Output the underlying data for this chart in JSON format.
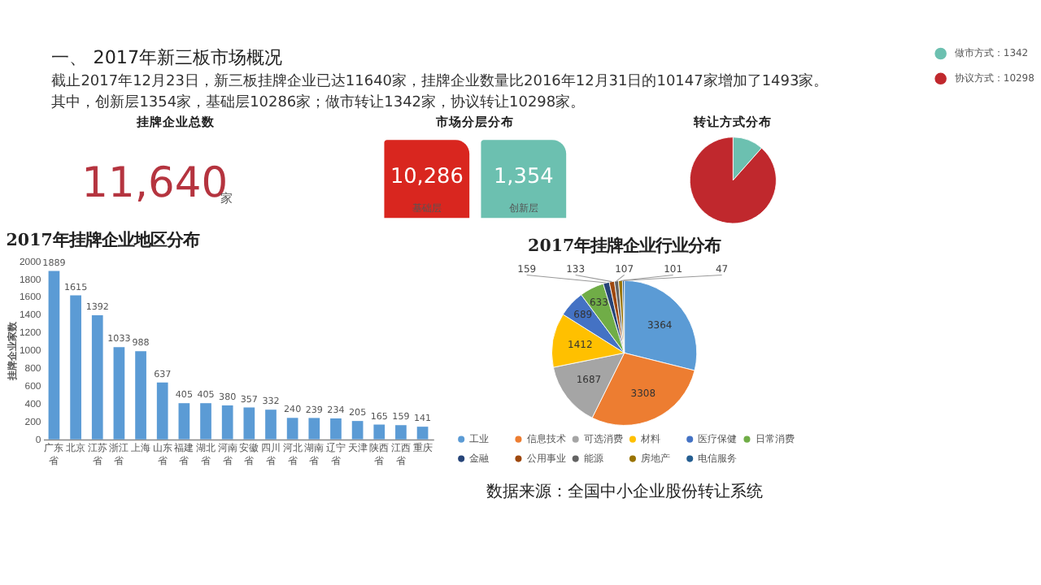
{
  "chart_data": [
    {
      "type": "other",
      "title": "一、 2017年新三板市场概况",
      "annotations": [
        "截止2017年12月23日，新三板挂牌企业已达11640家，挂牌企业数量比2016年12月31日的10147家增加了1493家。",
        "其中，创新层1354家，基础层10286家；做市转让1342家，协议转让10298家。"
      ]
    },
    {
      "type": "other",
      "title": "挂牌企业总数",
      "annotations": [
        "11,640",
        "家"
      ],
      "color": "#b5343f"
    },
    {
      "type": "other",
      "title": "市场分层分布",
      "categories": [
        "基础层",
        "创新层"
      ],
      "values": [
        10286,
        1354
      ],
      "value_labels": [
        "10,286",
        "1,354"
      ],
      "colors": [
        "#d9261f",
        "#6cc0b0"
      ]
    },
    {
      "type": "pie",
      "title": "转让方式分布",
      "categories": [
        "做市方式：1342",
        "协议方式：10298"
      ],
      "values": [
        1342,
        10298
      ],
      "colors": [
        "#6cc0b0",
        "#c0282d"
      ],
      "legend": "right"
    },
    {
      "type": "bar",
      "title": "2017年挂牌企业地区分布",
      "ylabel": "挂牌企业家数",
      "categories": [
        "广东省",
        "北京",
        "江苏省",
        "浙江省",
        "上海",
        "山东省",
        "福建省",
        "湖北省",
        "河南省",
        "安徽省",
        "四川省",
        "河北省",
        "湖南省",
        "辽宁省",
        "天津",
        "陕西省",
        "江西省",
        "重庆"
      ],
      "values": [
        1889,
        1615,
        1392,
        1033,
        988,
        637,
        405,
        405,
        380,
        357,
        332,
        240,
        239,
        234,
        205,
        165,
        159,
        141
      ],
      "color": "#5b9bd5",
      "ylim": [
        0,
        2000
      ],
      "yticks": [
        0,
        200,
        400,
        600,
        800,
        1000,
        1200,
        1400,
        1600,
        1800,
        2000
      ],
      "data_labels": true,
      "grid": false
    },
    {
      "type": "pie",
      "title": "2017年挂牌企业行业分布",
      "categories": [
        "工业",
        "信息技术",
        "可选消费",
        "材料",
        "医疗保健",
        "日常消费",
        "金融",
        "公用事业",
        "能源",
        "房地产",
        "电信服务"
      ],
      "values": [
        3364,
        3308,
        1687,
        1412,
        689,
        633,
        159,
        133,
        107,
        101,
        47
      ],
      "colors": [
        "#5b9bd5",
        "#ed7d31",
        "#a5a5a5",
        "#ffc000",
        "#4472c4",
        "#70ad47",
        "#264478",
        "#9e480e",
        "#636363",
        "#997300",
        "#255e91"
      ],
      "data_labels": true,
      "legend": "bottom",
      "annotations": [
        "数据来源：全国中小企业股份转让系统"
      ]
    }
  ]
}
